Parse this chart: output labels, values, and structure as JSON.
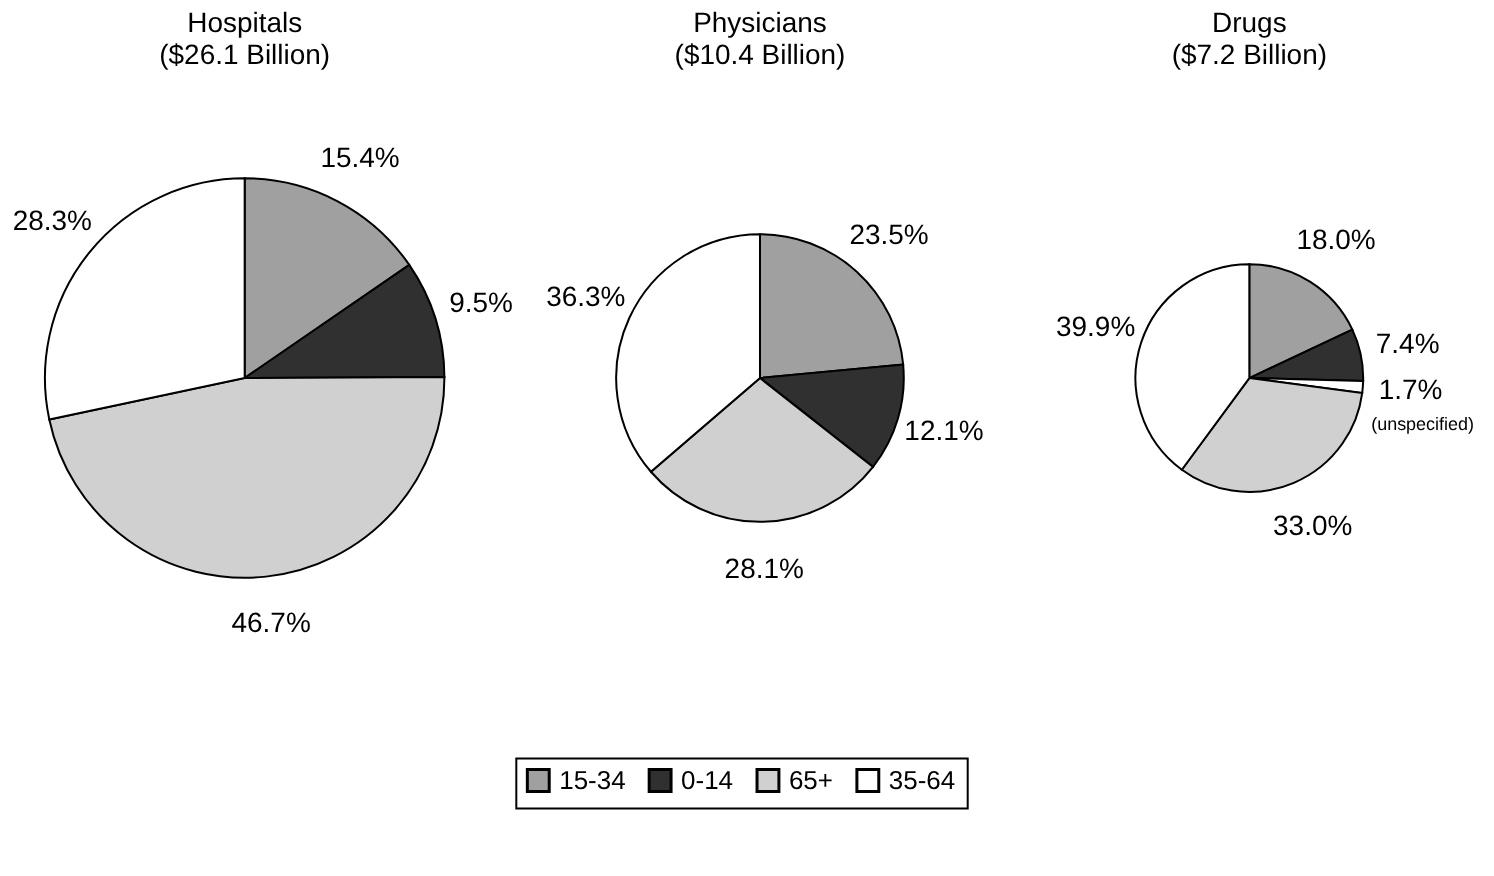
{
  "chart_data": [
    {
      "type": "pie",
      "title": [
        "Hospitals",
        "($26.1 Billion)"
      ],
      "categories": [
        null,
        null,
        null,
        null
      ],
      "values": [
        15.4,
        9.5,
        46.7,
        28.3
      ],
      "colors": [
        "#a0a0a0",
        "#303030",
        "#d0d0d0",
        "#ffffff"
      ],
      "value_labels": [
        "15.4%",
        "9.5%",
        "46.7%",
        "28.3%"
      ]
    },
    {
      "type": "pie",
      "title": [
        "Physicians",
        "($10.4 Billion)"
      ],
      "categories": [
        "15-34",
        "0-14",
        "65+",
        "35-64"
      ],
      "values": [
        23.5,
        12.1,
        28.1,
        36.3
      ],
      "colors": [
        "#a0a0a0",
        "#303030",
        "#d0d0d0",
        "#ffffff"
      ],
      "value_labels": [
        "23.5%",
        "12.1%",
        "28.1%",
        "36.3%"
      ],
      "legend": "bottom"
    },
    {
      "type": "pie",
      "title": [
        "Drugs",
        "($7.2 Billion)"
      ],
      "categories": [
        null,
        null,
        "(unspecified)",
        null,
        null
      ],
      "values": [
        18.0,
        7.4,
        1.7,
        33.0,
        39.9
      ],
      "colors": [
        "#a0a0a0",
        "#303030",
        "#ffffff",
        "#d0d0d0",
        "#ffffff"
      ],
      "value_labels": [
        "18.0%",
        "7.4%",
        "1.7%",
        "33.0%",
        "39.9%"
      ]
    }
  ]
}
